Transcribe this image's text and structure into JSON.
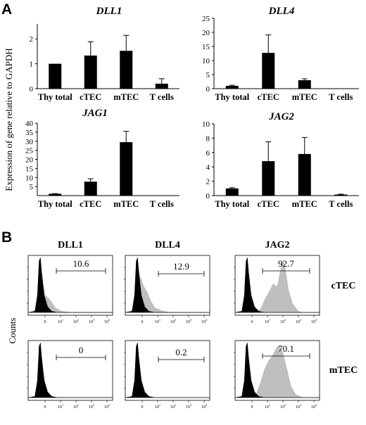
{
  "panels": {
    "a": "A",
    "b": "B"
  },
  "ylabel": "Expression of gene relative to GAPDH",
  "chart_data": [
    {
      "type": "bar",
      "title": "DLL1",
      "categories": [
        "Thy total",
        "cTEC",
        "mTEC",
        "T cells"
      ],
      "values": [
        1.0,
        1.33,
        1.52,
        0.2
      ],
      "errors": [
        0,
        0.55,
        0.62,
        0.2
      ],
      "yticks": [
        "0",
        "1",
        "2"
      ],
      "ylim": [
        0,
        2.6
      ]
    },
    {
      "type": "bar",
      "title": "DLL4",
      "categories": [
        "Thy total",
        "cTEC",
        "mTEC",
        "T cells"
      ],
      "values": [
        1.0,
        12.7,
        3.0,
        0
      ],
      "errors": [
        0.2,
        6.4,
        0.5,
        0
      ],
      "yticks": [
        "0",
        "5",
        "10",
        "15",
        "20",
        "25"
      ],
      "ylim": [
        0,
        25
      ]
    },
    {
      "type": "bar",
      "title": "JAG1",
      "categories": [
        "Thy total",
        "cTEC",
        "mTEC",
        "T cells"
      ],
      "values": [
        1.0,
        7.7,
        29.5,
        0
      ],
      "errors": [
        0.1,
        1.6,
        6.0,
        0
      ],
      "yticks": [
        "5",
        "10",
        "15",
        "20",
        "25",
        "30",
        "35",
        "40"
      ],
      "ylim": [
        0,
        40
      ]
    },
    {
      "type": "bar",
      "title": "JAG2",
      "categories": [
        "Thy total",
        "cTEC",
        "mTEC",
        "T cells"
      ],
      "values": [
        1.0,
        4.8,
        5.8,
        0.15
      ],
      "errors": [
        0.1,
        2.7,
        2.3,
        0.05
      ],
      "yticks": [
        "0",
        "2",
        "4",
        "6",
        "8",
        "10"
      ],
      "ylim": [
        0,
        10
      ]
    },
    {
      "type": "histogram",
      "columns": [
        "DLL1",
        "DLL4",
        "JAG2"
      ],
      "rows": [
        "cTEC",
        "mTEC"
      ],
      "percentages": [
        [
          "10.6",
          "12.9",
          "92.7"
        ],
        [
          "0",
          "0.2",
          "70.1"
        ]
      ],
      "xticks": [
        "0",
        "10",
        "10",
        "10",
        "10"
      ],
      "xtick_exponents": [
        "",
        "1",
        "2",
        "3",
        "4"
      ],
      "ylabel": "Counts"
    }
  ]
}
